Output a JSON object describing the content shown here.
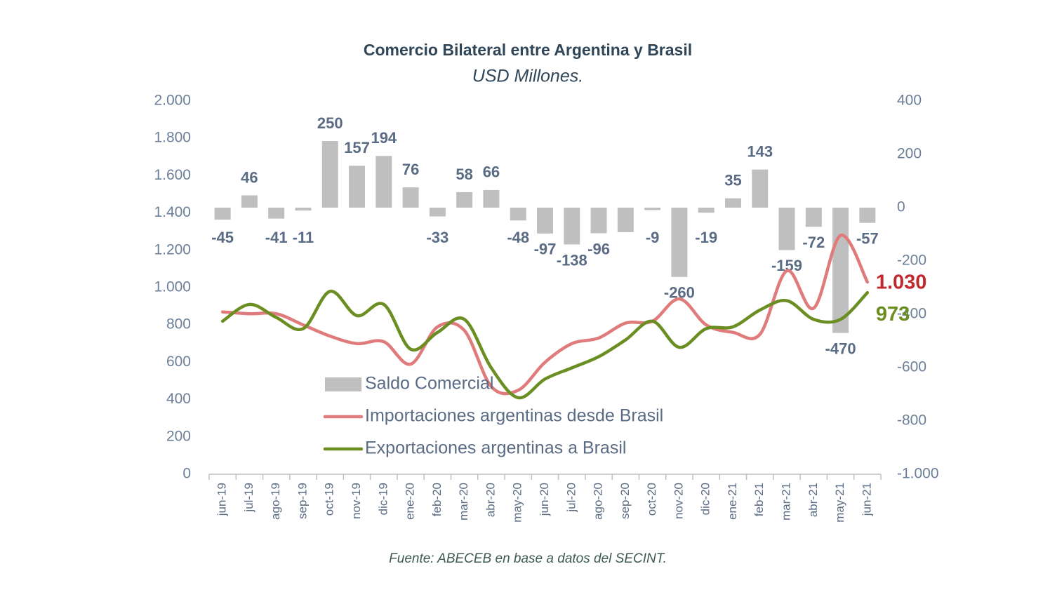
{
  "chart_data": {
    "type": "bar-line",
    "title": "Comercio Bilateral entre Argentina y Brasil",
    "subtitle": "USD Millones.",
    "source": "Fuente: ABECEB en base a datos del SECINT.",
    "categories": [
      "jun-19",
      "jul-19",
      "ago-19",
      "sep-19",
      "oct-19",
      "nov-19",
      "dic-19",
      "ene-20",
      "feb-20",
      "mar-20",
      "abr-20",
      "may-20",
      "jun-20",
      "jul-20",
      "ago-20",
      "sep-20",
      "oct-20",
      "nov-20",
      "dic-20",
      "ene-21",
      "feb-21",
      "mar-21",
      "abr-21",
      "may-21",
      "jun-21"
    ],
    "series": [
      {
        "name": "Saldo Comercial",
        "color": "#bfbfbf",
        "axis": "y2",
        "kind": "bar",
        "values": [
          -45,
          46,
          -41,
          -11,
          250,
          157,
          194,
          76,
          -33,
          58,
          66,
          -48,
          -97,
          -138,
          -96,
          -92,
          -9,
          -260,
          -19,
          35,
          143,
          -159,
          -72,
          -470,
          -57
        ],
        "value_labels": [
          "-45",
          "46",
          "-41",
          "-11",
          "250",
          "157",
          "194",
          "76",
          "-33",
          "58",
          "66",
          "-48",
          "-97",
          "-138",
          "-96",
          null,
          "-9",
          "-260",
          "-19",
          "35",
          "143",
          "-159",
          "-72",
          "-470",
          "-57"
        ]
      },
      {
        "name": "Importaciones argentinas desde Brasil",
        "color": "#e07b7b",
        "kind": "line",
        "label_color": "#c0282d",
        "values": [
          870,
          860,
          860,
          800,
          740,
          700,
          710,
          590,
          790,
          770,
          470,
          450,
          600,
          700,
          730,
          810,
          820,
          940,
          800,
          760,
          750,
          1090,
          890,
          1280,
          1030
        ],
        "value_labels": [
          null,
          null,
          null,
          null,
          null,
          null,
          null,
          null,
          null,
          null,
          null,
          null,
          null,
          null,
          null,
          null,
          null,
          null,
          null,
          null,
          null,
          null,
          null,
          null,
          "1.030"
        ]
      },
      {
        "name": "Exportaciones argentinas a Brasil",
        "color": "#6b8e23",
        "kind": "line",
        "label_color": "#6b8e23",
        "values": [
          820,
          910,
          840,
          780,
          980,
          850,
          910,
          670,
          760,
          830,
          570,
          410,
          510,
          570,
          630,
          720,
          820,
          680,
          780,
          790,
          880,
          930,
          830,
          830,
          973
        ],
        "value_labels": [
          null,
          null,
          null,
          null,
          null,
          null,
          null,
          null,
          null,
          null,
          null,
          null,
          null,
          null,
          null,
          null,
          null,
          null,
          null,
          null,
          null,
          null,
          null,
          null,
          "973"
        ]
      }
    ],
    "ylim": [
      0,
      2000
    ],
    "yticks": [
      0,
      200,
      400,
      600,
      800,
      {
        "value": 1000,
        "label": "1.000"
      },
      {
        "value": 1200,
        "label": "1.200"
      },
      {
        "value": 1400,
        "label": "1.400"
      },
      {
        "value": 1600,
        "label": "1.600"
      },
      {
        "value": 1800,
        "label": "1.800"
      },
      {
        "value": 2000,
        "label": "2.000"
      }
    ],
    "y2lim": [
      -1000,
      400
    ],
    "y2ticks": [
      {
        "value": -1000,
        "label": "-1.000"
      },
      -800,
      -600,
      -400,
      -200,
      0,
      200,
      400
    ]
  }
}
